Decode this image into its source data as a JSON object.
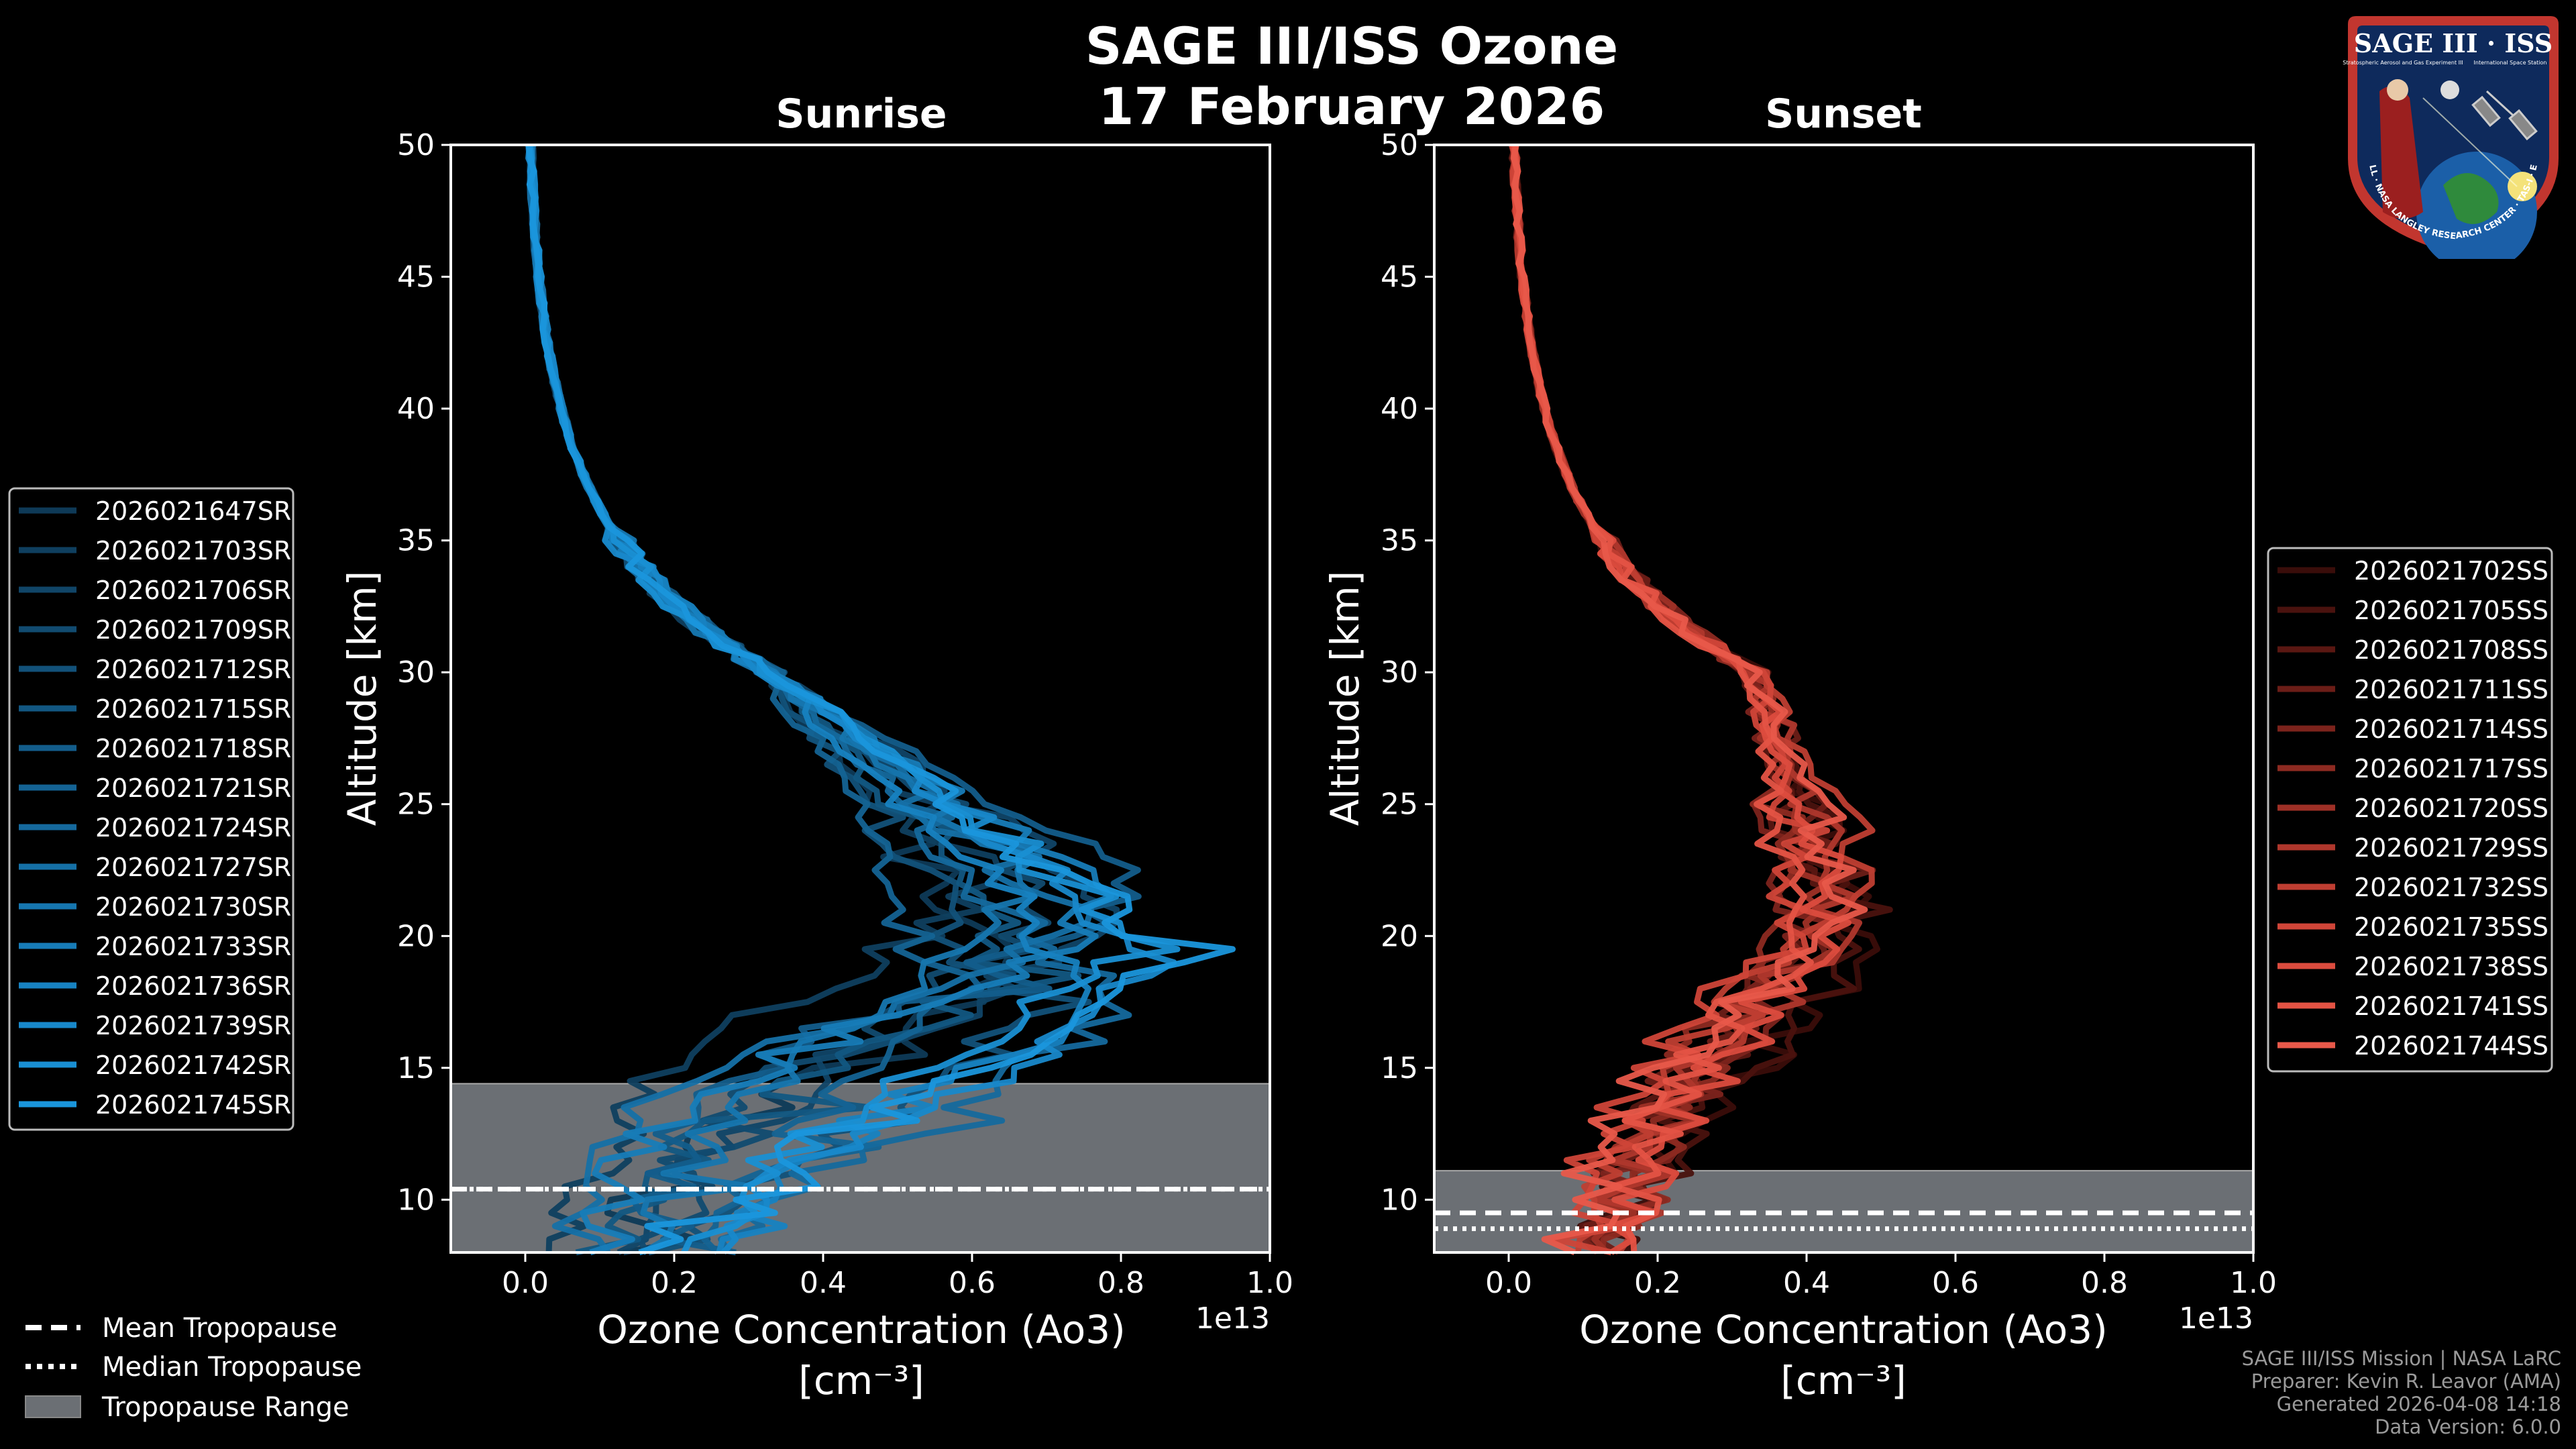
{
  "title_line1": "SAGE III/ISS Ozone",
  "title_line2": "17 February 2026",
  "logo": {
    "title": "SAGE III · ISS",
    "subtitle": "Stratospheric Aerosol and Gas Experiment III",
    "subtitle2": "International Space Station",
    "ring_text": "BALL · NASA LANGLEY RESEARCH CENTER · TAS-I · ESA"
  },
  "colors": {
    "sunrise": "#1a96dc",
    "sunset": "#e8594a",
    "tropo_fill": "#6b6f74"
  },
  "chart_data": [
    {
      "type": "line",
      "title": "Sunrise",
      "xlabel": "Ozone Concentration (Ao3)",
      "xlabel_units": "[cm⁻³]",
      "ylabel": "Altitude [km]",
      "x_offset_label": "1e13",
      "xlim": [
        -0.1,
        1.0
      ],
      "ylim": [
        8,
        50
      ],
      "xticks": [
        "0.0",
        "0.2",
        "0.4",
        "0.6",
        "0.8",
        "1.0"
      ],
      "yticks": [
        "10",
        "15",
        "20",
        "25",
        "30",
        "35",
        "40",
        "45",
        "50"
      ],
      "tropopause": {
        "mean": 10.4,
        "median": 10.4,
        "range": [
          8,
          14.4
        ]
      },
      "series": [
        {
          "name": "2026021647SR",
          "color": "#0e3a57"
        },
        {
          "name": "2026021703SR",
          "color": "#0f3f5f"
        },
        {
          "name": "2026021706SR",
          "color": "#104567"
        },
        {
          "name": "2026021709SR",
          "color": "#114b70"
        },
        {
          "name": "2026021712SR",
          "color": "#125179"
        },
        {
          "name": "2026021715SR",
          "color": "#125782"
        },
        {
          "name": "2026021718SR",
          "color": "#135d8b"
        },
        {
          "name": "2026021721SR",
          "color": "#146394"
        },
        {
          "name": "2026021724SR",
          "color": "#15699d"
        },
        {
          "name": "2026021727SR",
          "color": "#1570a6"
        },
        {
          "name": "2026021730SR",
          "color": "#1676af"
        },
        {
          "name": "2026021733SR",
          "color": "#177cb8"
        },
        {
          "name": "2026021736SR",
          "color": "#1782c1"
        },
        {
          "name": "2026021739SR",
          "color": "#1888ca"
        },
        {
          "name": "2026021742SR",
          "color": "#198fd3"
        },
        {
          "name": "2026021745SR",
          "color": "#1a96dc"
        }
      ]
    },
    {
      "type": "line",
      "title": "Sunset",
      "xlabel": "Ozone Concentration (Ao3)",
      "xlabel_units": "[cm⁻³]",
      "ylabel": "Altitude [km]",
      "x_offset_label": "1e13",
      "xlim": [
        -0.1,
        1.0
      ],
      "ylim": [
        8,
        50
      ],
      "xticks": [
        "0.0",
        "0.2",
        "0.4",
        "0.6",
        "0.8",
        "1.0"
      ],
      "yticks": [
        "10",
        "15",
        "20",
        "25",
        "30",
        "35",
        "40",
        "45",
        "50"
      ],
      "tropopause": {
        "mean": 9.5,
        "median": 8.9,
        "range": [
          8,
          11.1
        ]
      },
      "series": [
        {
          "name": "2026021702SS",
          "color": "#3a0d0a"
        },
        {
          "name": "2026021705SS",
          "color": "#4a120e"
        },
        {
          "name": "2026021708SS",
          "color": "#5a1712"
        },
        {
          "name": "2026021711SS",
          "color": "#6b1d17"
        },
        {
          "name": "2026021714SS",
          "color": "#7c231c"
        },
        {
          "name": "2026021717SS",
          "color": "#8d2a21"
        },
        {
          "name": "2026021720SS",
          "color": "#9e3026"
        },
        {
          "name": "2026021729SS",
          "color": "#af372c"
        },
        {
          "name": "2026021732SS",
          "color": "#bf3e32"
        },
        {
          "name": "2026021735SS",
          "color": "#cf4538"
        },
        {
          "name": "2026021738SS",
          "color": "#dc4c3e"
        },
        {
          "name": "2026021741SS",
          "color": "#e45344"
        },
        {
          "name": "2026021744SS",
          "color": "#e8594a"
        }
      ]
    }
  ],
  "legend_bottom": [
    {
      "label": "Mean Tropopause",
      "style": "dashed"
    },
    {
      "label": "Median Tropopause",
      "style": "dotted"
    },
    {
      "label": "Tropopause Range",
      "style": "patch"
    }
  ],
  "credits": [
    "SAGE III/ISS Mission | NASA LaRC",
    "Preparer: Kevin R. Leavor (AMA)",
    "Generated 2026-04-08 14:18",
    "Data Version: 6.0.0"
  ]
}
